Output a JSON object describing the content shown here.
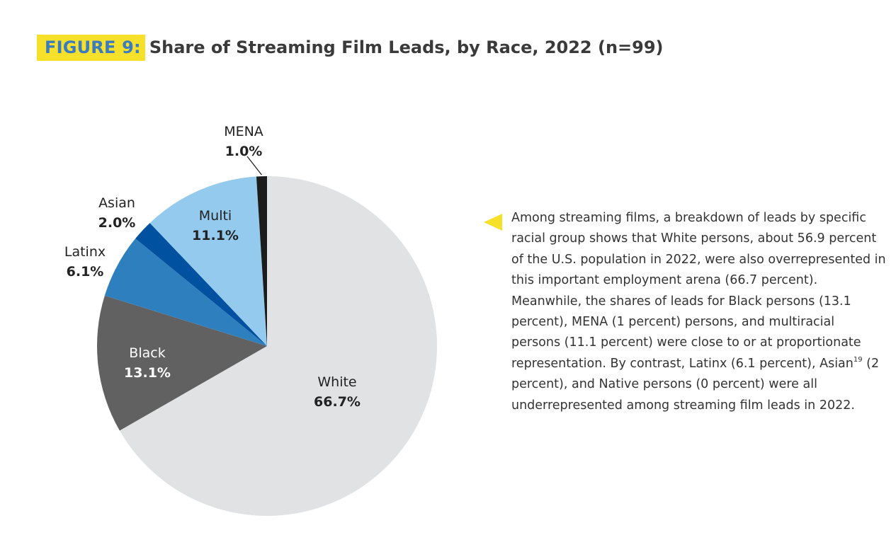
{
  "header": {
    "figure_tag": "FIGURE 9:",
    "title": "Share of Streaming Film Leads, by Race, 2022 (n=99)"
  },
  "chart_data": {
    "type": "pie",
    "title": "Share of Streaming Film Leads, by Race, 2022 (n=99)",
    "start_angle_deg": 0,
    "direction": "clockwise",
    "slices": [
      {
        "label": "White",
        "value": 66.7,
        "value_label": "66.7%",
        "color": "#e1e2e3"
      },
      {
        "label": "Black",
        "value": 13.1,
        "value_label": "13.1%",
        "color": "#616161"
      },
      {
        "label": "Latinx",
        "value": 6.1,
        "value_label": "6.1%",
        "color": "#2e7fbe"
      },
      {
        "label": "Asian",
        "value": 2.0,
        "value_label": "2.0%",
        "color": "#0052a0"
      },
      {
        "label": "Multi",
        "value": 11.1,
        "value_label": "11.1%",
        "color": "#93caee"
      },
      {
        "label": "MENA",
        "value": 1.0,
        "value_label": "1.0%",
        "color": "#1c1c1c"
      }
    ]
  },
  "note": {
    "text_before_sup": "Among streaming films, a breakdown of leads by specific racial group shows that White persons, about 56.9 percent of the U.S. population in 2022, were also overrepresented in this important employment arena (66.7 percent). Meanwhile, the shares of leads for Black persons (13.1 percent), MENA (1 percent) persons, and multiracial persons (11.1 percent) were close to or at proportionate representation. By contrast, Latinx (6.1 percent), Asian",
    "footnote": "19",
    "text_after_sup": " (2 percent), and Native persons (0 percent) were all underrepresented among streaming film leads in 2022.",
    "accent_color": "#f6e02a"
  }
}
